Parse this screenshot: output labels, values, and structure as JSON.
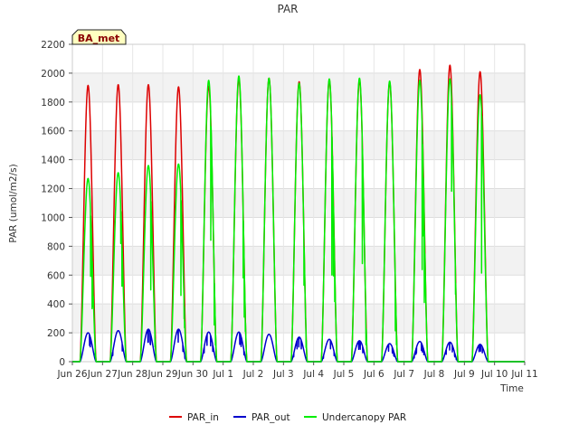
{
  "chart_data": {
    "type": "line",
    "title": "PAR",
    "xlabel": "Time",
    "ylabel": "PAR (umol/m2/s)",
    "badge": "BA_met",
    "ylim": [
      0,
      2200
    ],
    "xlim": [
      0,
      15
    ],
    "yticks": [
      0,
      200,
      400,
      600,
      800,
      1000,
      1200,
      1400,
      1600,
      1800,
      2000,
      2200
    ],
    "ytick_labels": [
      "0",
      "200",
      "400",
      "600",
      "800",
      "1000",
      "1200",
      "1400",
      "1600",
      "1800",
      "2000",
      "2200"
    ],
    "xticks": [
      0,
      1,
      2,
      3,
      4,
      5,
      6,
      7,
      8,
      9,
      10,
      11,
      12,
      13,
      14,
      15
    ],
    "xtick_labels": [
      "Jun 26",
      "Jun 27",
      "Jun 28",
      "Jun 29",
      "Jun 30",
      "Jul 1",
      "Jul 2",
      "Jul 3",
      "Jul 4",
      "Jul 5",
      "Jul 6",
      "Jul 7",
      "Jul 8",
      "Jul 9",
      "Jul 10",
      "Jul 11"
    ],
    "x_units": "days since Jun 26 00:00",
    "series": [
      {
        "name": "PAR_in",
        "color": "#dd0000",
        "daily_peak": [
          1915,
          1920,
          1920,
          1905,
          1910,
          1960,
          1965,
          1940,
          1950,
          1950,
          1935,
          2025,
          2055,
          2010
        ]
      },
      {
        "name": "PAR_out",
        "color": "#0000cc",
        "daily_peak": [
          200,
          215,
          225,
          225,
          205,
          205,
          190,
          170,
          155,
          145,
          125,
          140,
          135,
          120
        ]
      },
      {
        "name": "Undercanopy PAR",
        "color": "#00ee00",
        "daily_peak": [
          1270,
          1310,
          1360,
          1370,
          1950,
          1980,
          1965,
          1930,
          1960,
          1965,
          1945,
          1950,
          1960,
          1850
        ]
      }
    ],
    "legend": {
      "placement": "bottom-center",
      "entries": [
        "PAR_in",
        "PAR_out",
        "Undercanopy PAR"
      ]
    }
  }
}
